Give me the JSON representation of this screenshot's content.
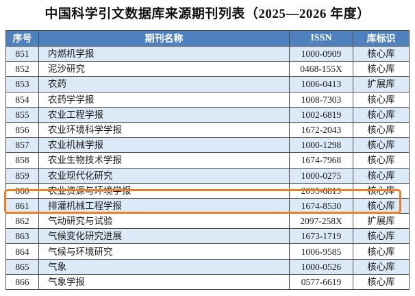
{
  "title": "中国科学引文数据库来源期刊列表（2025—2026 年度）",
  "table": {
    "headers": [
      "序号",
      "期刊名称",
      "ISSN",
      "库标识"
    ],
    "rows": [
      {
        "no": "851",
        "name": "内燃机学报",
        "issn": "1000-0909",
        "db": "核心库"
      },
      {
        "no": "852",
        "name": "泥沙研究",
        "issn": "0468-155X",
        "db": "核心库"
      },
      {
        "no": "853",
        "name": "农药",
        "issn": "1006-0413",
        "db": "扩展库"
      },
      {
        "no": "854",
        "name": "农药学学报",
        "issn": "1008-7303",
        "db": "核心库"
      },
      {
        "no": "855",
        "name": "农业工程学报",
        "issn": "1002-6819",
        "db": "核心库"
      },
      {
        "no": "856",
        "name": "农业环境科学学报",
        "issn": "1672-2043",
        "db": "核心库"
      },
      {
        "no": "857",
        "name": "农业机械学报",
        "issn": "1000-1298",
        "db": "核心库"
      },
      {
        "no": "858",
        "name": "农业生物技术学报",
        "issn": "1674-7968",
        "db": "核心库"
      },
      {
        "no": "859",
        "name": "农业现代化研究",
        "issn": "1000-0275",
        "db": "核心库"
      },
      {
        "no": "860",
        "name": "农业资源与环境学报",
        "issn": "2095-6819",
        "db": "核心库"
      },
      {
        "no": "861",
        "name": "排灌机械工程学报",
        "issn": "1674-8530",
        "db": "核心库"
      },
      {
        "no": "862",
        "name": "气动研究与试验",
        "issn": "2097-258X",
        "db": "扩展库"
      },
      {
        "no": "863",
        "name": "气候变化研究进展",
        "issn": "1673-1719",
        "db": "核心库"
      },
      {
        "no": "864",
        "name": "气候与环境研究",
        "issn": "1006-9585",
        "db": "核心库"
      },
      {
        "no": "865",
        "name": "气象",
        "issn": "1000-0526",
        "db": "核心库"
      },
      {
        "no": "866",
        "name": "气象学报",
        "issn": "0577-6619",
        "db": "核心库"
      }
    ]
  },
  "highlight": {
    "target_row_no": "861",
    "shape": "rounded-rectangle-outline"
  },
  "colors": {
    "header_bg": "#4e81bd",
    "header_text": "#ffffff",
    "row_alt_bg": "#dce9f7",
    "border_color": "#4d4d4d",
    "body_text": "#1a1a1a",
    "highlight_color": "#e8802c"
  }
}
